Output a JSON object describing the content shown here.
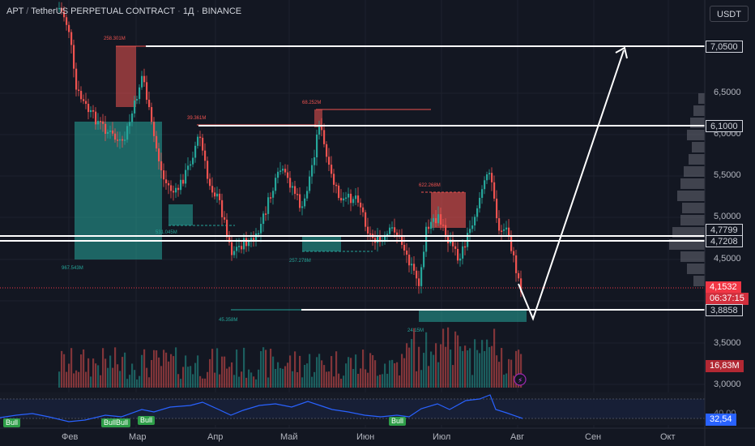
{
  "header": {
    "symbol": "APT",
    "separator": "/",
    "pair": "TetherUS PERPETUAL CONTRACT",
    "dot": "·",
    "interval": "1Д",
    "exchange": "BINANCE"
  },
  "toolbar": {
    "currency_label": "USDT"
  },
  "price_axis": {
    "ticks": [
      "6,5000",
      "6,0000",
      "5,5000",
      "5,0000",
      "4,5000",
      "4,0000",
      "3,5000",
      "3,0000"
    ],
    "levels": {
      "target": "7,0500",
      "resistance": "6,1000",
      "upper_zone_top": "4,7799",
      "upper_zone_bottom": "4,7208",
      "support": "3,8858"
    },
    "current_price": "4,1532",
    "countdown": "06:37:15",
    "volume": "16,83M",
    "rsi_value": "40,00",
    "rsi_current": "32,54"
  },
  "time_axis": {
    "months": [
      "Фев",
      "Мар",
      "Апр",
      "Май",
      "Июн",
      "Июл",
      "Авг",
      "Сен",
      "Окт"
    ]
  },
  "annotations": {
    "vol_1": "258.301M",
    "vol_2": "39.361M",
    "vol_3": "68.252M",
    "vol_4": "622.268M",
    "vol_5": "967.543M",
    "vol_6": "257.278M",
    "vol_7": "45.358M",
    "vol_8": "24.15M",
    "vol_9": "531.045M"
  },
  "rsi_signals": [
    "Bull",
    "BullBull",
    "Bull",
    "Bull"
  ],
  "colors": {
    "background": "#131722",
    "bull": "#26a69a",
    "bear": "#ef5350",
    "line": "#ffffff",
    "rsi": "#2962ff",
    "signal": "#2e9e48"
  },
  "chart_data": {
    "type": "candlestick",
    "x": [
      "Фев",
      "Мар",
      "Апр",
      "Май",
      "Июн",
      "Июл",
      "Авг",
      "Сен",
      "Окт"
    ],
    "ylim": [
      3.0,
      7.5
    ],
    "horizontal_levels": [
      7.05,
      6.1,
      4.7799,
      4.7208,
      3.8858
    ],
    "current_price": 4.1532,
    "projection": {
      "low": 3.8858,
      "target": 7.05
    }
  }
}
